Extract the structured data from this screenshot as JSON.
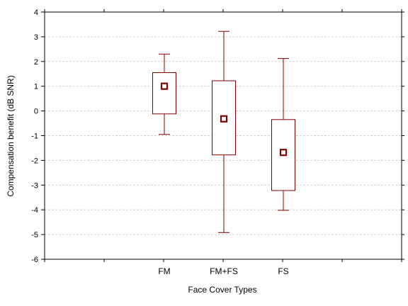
{
  "chart_data": {
    "type": "box",
    "title": "",
    "xlabel": "Face Cover Types",
    "ylabel": "Compensation benefit (dB SNR)",
    "ylim": [
      -6,
      4
    ],
    "yticks": [
      "4",
      "3",
      "2",
      "1",
      "0",
      "-1",
      "-2",
      "-3",
      "-4",
      "-5",
      "-6"
    ],
    "grid": "horizontal dashed",
    "legend": "none",
    "categories": [
      "FM",
      "FM+FS",
      "FS"
    ],
    "boxes": [
      {
        "category": "FM",
        "mean": 1.0,
        "q1": -0.12,
        "q3": 1.55,
        "whisker_low": -0.95,
        "whisker_high": 2.3
      },
      {
        "category": "FM+FS",
        "mean": -0.32,
        "q1": -1.78,
        "q3": 1.22,
        "whisker_low": -4.92,
        "whisker_high": 3.22
      },
      {
        "category": "FS",
        "mean": -1.68,
        "q1": -3.22,
        "q3": -0.35,
        "whisker_low": -4.02,
        "whisker_high": 2.12
      }
    ],
    "colors": {
      "box": "#800000",
      "grid": "#d0d0d0",
      "axis": "#000000"
    }
  }
}
